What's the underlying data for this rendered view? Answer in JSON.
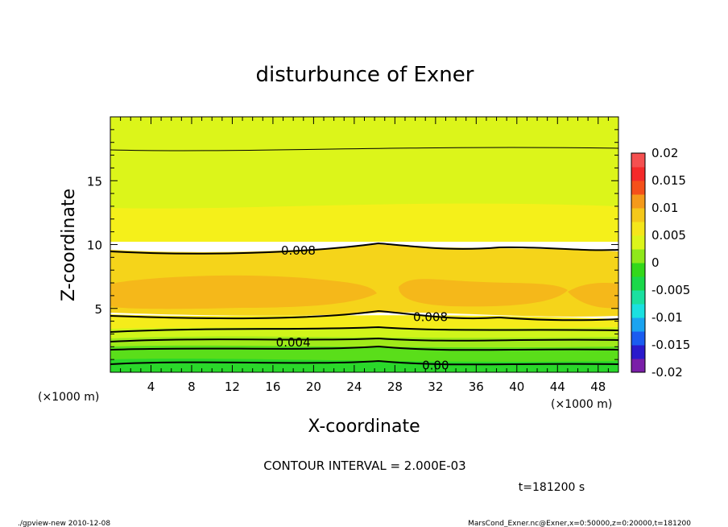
{
  "chart_data": {
    "type": "contour",
    "title": "disturbunce of Exner",
    "xlabel": "X-coordinate",
    "ylabel": "Z-coordinate",
    "x_unit": "(×1000 m)",
    "y_unit": "(×1000 m)",
    "xlim": [
      0,
      50
    ],
    "ylim": [
      0,
      20
    ],
    "x_ticks": [
      4,
      8,
      12,
      16,
      20,
      24,
      28,
      32,
      36,
      40,
      44,
      48
    ],
    "y_ticks": [
      5,
      10,
      15
    ],
    "contour_interval_text": "CONTOUR INTERVAL = 2.000E-03",
    "time_text": "t=181200 s",
    "contour_labels": [
      {
        "text": "0.008",
        "x": 18.5,
        "z": 9.6
      },
      {
        "text": "0.008",
        "x": 31.5,
        "z": 4.4
      },
      {
        "text": "0.004",
        "x": 18,
        "z": 2.4
      },
      {
        "text": "0.00",
        "x": 32,
        "z": 0.6
      }
    ],
    "contour_levels": [
      0.0,
      0.002,
      0.004,
      0.006,
      0.008,
      0.006
    ],
    "colorbar": {
      "ticks": [
        "0.02",
        "0.015",
        "0.01",
        "0.005",
        "0",
        "-0.005",
        "-0.01",
        "-0.015",
        "-0.02"
      ],
      "range": [
        -0.02,
        0.02
      ],
      "colors": [
        "#7a1ea8",
        "#2a1acc",
        "#1a5cf0",
        "#1aa3f0",
        "#1ae0e0",
        "#1ae0a0",
        "#1ad84a",
        "#33d81a",
        "#8fe81a",
        "#dcf51a",
        "#f5e61a",
        "#f5c81a",
        "#f59a1a",
        "#f5501a",
        "#f52a2a",
        "#f55050"
      ]
    }
  },
  "footer": {
    "left": "./gpview-new  2010-12-08",
    "right": "MarsCond_Exner.nc@Exner,x=0:50000,z=0:20000,t=181200"
  }
}
